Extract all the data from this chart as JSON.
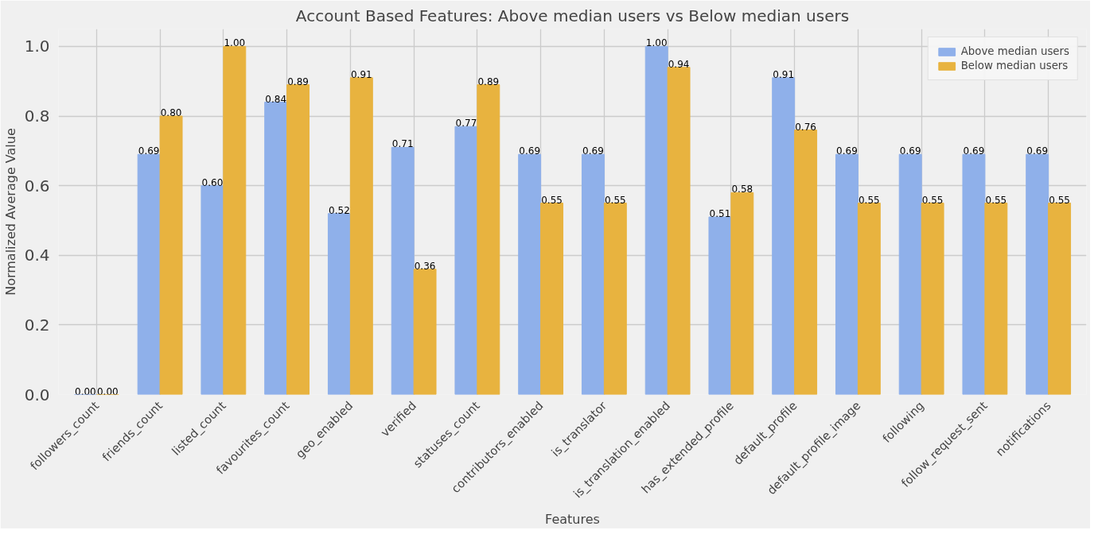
{
  "chart_data": {
    "type": "bar",
    "title": "Account Based Features: Above median users vs Below median users",
    "xlabel": "Features",
    "ylabel": "Normalized Average Value",
    "categories": [
      "followers_count",
      "friends_count",
      "listed_count",
      "favourites_count",
      "geo_enabled",
      "verified",
      "statuses_count",
      "contributors_enabled",
      "is_translator",
      "is_translation_enabled",
      "has_extended_profile",
      "default_profile",
      "default_profile_image",
      "following",
      "follow_request_sent",
      "notifications"
    ],
    "series": [
      {
        "name": "Above median users",
        "color": "#8fb0ea",
        "values": [
          0.0,
          0.69,
          0.6,
          0.84,
          0.52,
          0.71,
          0.77,
          0.69,
          0.69,
          1.0,
          0.51,
          0.91,
          0.69,
          0.69,
          0.69,
          0.69
        ],
        "value_labels": [
          "0.00",
          "0.69",
          "0.60",
          "0.84",
          "0.52",
          "0.71",
          "0.77",
          "0.69",
          "0.69",
          "1.00",
          "0.51",
          "0.91",
          "0.69",
          "0.69",
          "0.69",
          "0.69"
        ]
      },
      {
        "name": "Below median users",
        "color": "#e8b33f",
        "values": [
          0.0,
          0.8,
          1.0,
          0.89,
          0.91,
          0.36,
          0.89,
          0.55,
          0.55,
          0.94,
          0.58,
          0.76,
          0.55,
          0.55,
          0.55,
          0.55
        ],
        "value_labels": [
          "0.00",
          "0.80",
          "1.00",
          "0.89",
          "0.91",
          "0.36",
          "0.89",
          "0.55",
          "0.55",
          "0.94",
          "0.58",
          "0.76",
          "0.55",
          "0.55",
          "0.55",
          "0.55"
        ]
      }
    ],
    "ylim": [
      0,
      1.05
    ],
    "yticks": [
      {
        "value": 0,
        "label": "0.0"
      },
      {
        "value": 0.2,
        "label": "0.2"
      },
      {
        "value": 0.4,
        "label": "0.4"
      },
      {
        "value": 0.6,
        "label": "0.6"
      },
      {
        "value": 0.8,
        "label": "0.8"
      },
      {
        "value": 1.0,
        "label": "1.0"
      }
    ],
    "grid": true,
    "legend": "top right"
  }
}
